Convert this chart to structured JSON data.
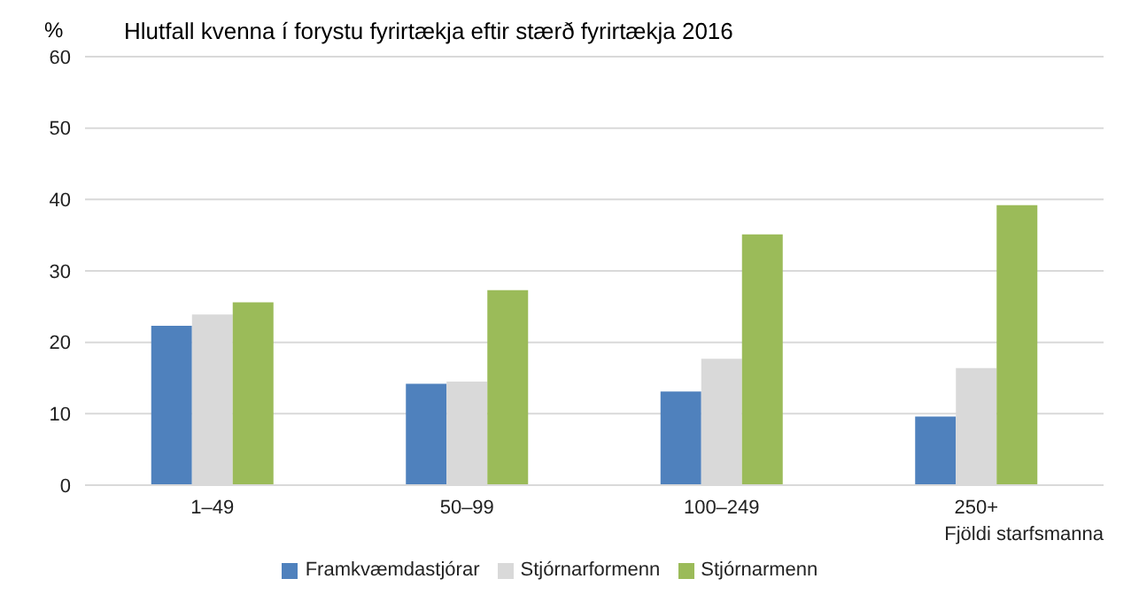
{
  "chart_data": {
    "type": "bar",
    "title": "Hlutfall kvenna í forystu fyrirtækja eftir stærð fyrirtækja 2016",
    "ylabel": "%",
    "xlabel": "Fjöldi starfsmanna",
    "categories": [
      "1–49",
      "50–99",
      "100–249",
      "250+"
    ],
    "series": [
      {
        "name": "Framkvæmdastjórar",
        "color": "#4f81bd",
        "values": [
          22.3,
          14.2,
          13.1,
          9.6
        ]
      },
      {
        "name": "Stjórnarformenn",
        "color": "#d9d9d9",
        "values": [
          23.9,
          14.5,
          17.7,
          16.4
        ]
      },
      {
        "name": "Stjórnarmenn",
        "color": "#9bbb59",
        "values": [
          25.6,
          27.3,
          35.1,
          39.2
        ]
      }
    ],
    "ylim": [
      0,
      60
    ],
    "yticks": [
      0,
      10,
      20,
      30,
      40,
      50,
      60
    ],
    "grid": "y",
    "legend": "bottom"
  }
}
